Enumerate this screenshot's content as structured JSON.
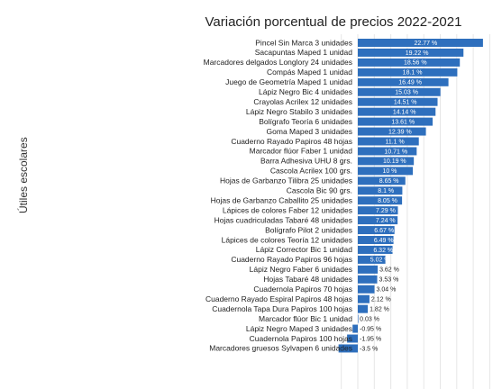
{
  "chart_data": {
    "type": "bar",
    "orientation": "horizontal",
    "title": "Variación porcentual de precios 2022-2021",
    "xlabel": "",
    "ylabel": "Útiles escolares",
    "grid": true,
    "bar_color": "#2e6fbd",
    "categories": [
      "Pincel Sin Marca 3 unidades",
      "Sacapuntas Maped 1 unidad",
      "Marcadores delgados Longlory 24 unidades",
      "Compás Maped 1 unidad",
      "Juego de Geometría Maped 1 unidad",
      "Lápiz Negro Bic 4 unidades",
      "Crayolas Acrilex 12 unidades",
      "Lápiz Negro Stabilo 3 unidades",
      "Bolígrafo Teoría 6 unidades",
      "Goma Maped 3 unidades",
      "Cuaderno Rayado Papiros 48 hojas",
      "Marcador flúor Faber 1 unidad",
      "Barra Adhesiva UHU 8 grs.",
      "Cascola Acrilex 100 grs.",
      "Hojas de Garbanzo Tilibra 25 unidades",
      "Cascola Bic 90 grs.",
      "Hojas de Garbanzo Caballito 25 unidades",
      "Lápices de colores Faber 12 unidades",
      "Hojas cuadriculadas Tabaré 48 unidades",
      "Bolígrafo Pilot 2 unidades",
      "Lápices de colores Teoría 12 unidades",
      "Lápiz Corrector Bic 1 unidad",
      "Cuaderno Rayado Papiros 96 hojas",
      "Lápiz Negro Faber 6 unidades",
      "Hojas Tabaré 48 unidades",
      "Cuadernola Papiros 70 hojas",
      "Cuaderno Rayado Espiral Papiros 48 hojas",
      "Cuadernola Tapa Dura Papiros 100 hojas",
      "Marcador flúor Bic 1 unidad",
      "Lápiz Negro Maped 3 unidades",
      "Cuadernola Papiros 100 hojas",
      "Marcadores gruesos Sylvapen 6 unidades"
    ],
    "values": [
      22.77,
      19.22,
      18.56,
      18.1,
      16.49,
      15.03,
      14.51,
      14.14,
      13.61,
      12.39,
      11.1,
      10.71,
      10.19,
      10,
      8.65,
      8.1,
      8.05,
      7.29,
      7.24,
      6.67,
      6.49,
      6.32,
      5.02,
      3.62,
      3.53,
      3.04,
      2.12,
      1.82,
      0.03,
      -0.95,
      -1.95,
      -3.5
    ],
    "labels": [
      "22.77 %",
      "19.22 %",
      "18.56 %",
      "18.1 %",
      "16.49 %",
      "15.03 %",
      "14.51 %",
      "14.14 %",
      "13.61 %",
      "12.39 %",
      "11.1 %",
      "10.71 %",
      "10.19 %",
      "10 %",
      "8.65 %",
      "8.1 %",
      "8.05 %",
      "7.29 %",
      "7.24 %",
      "6.67 %",
      "6.49 %",
      "6.32 %",
      "5.02 %",
      "3.62 %",
      "3.53 %",
      "3.04 %",
      "2.12 %",
      "1.82 %",
      "0.03 %",
      "-0.95 %",
      "-1.95 %",
      "-3.5 %"
    ]
  }
}
